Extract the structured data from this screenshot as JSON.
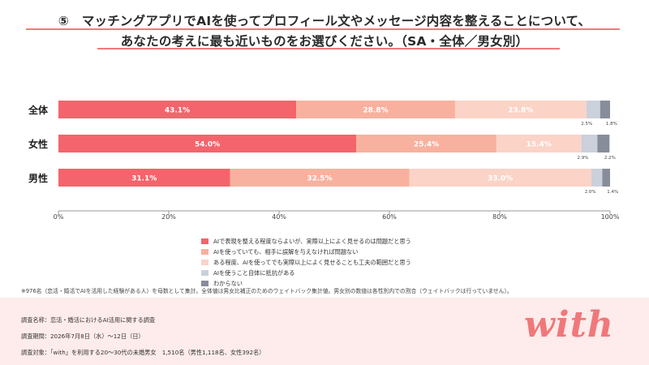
{
  "title": {
    "line1": "⑤　マッチングアプリでAIを使ってプロフィール文やメッセージ内容を整えることについて、",
    "line2": "あなたの考えに最も近いものをお選びください。（SA・全体／男女別）"
  },
  "chart_data": {
    "type": "bar",
    "orientation": "horizontal",
    "stacked": true,
    "categories": [
      "全体",
      "女性",
      "男性"
    ],
    "series": [
      {
        "name": "AIで表現を整える程度ならよいが、実際以上によく見せるのは問題だと思う",
        "color": "#f4646c",
        "values": [
          43.1,
          54.0,
          31.1
        ],
        "labels": [
          "43.1%",
          "54.0%",
          "31.1%"
        ]
      },
      {
        "name": "AIを使っていても、相手に誤解を与えなければ問題ない",
        "color": "#f8b19f",
        "values": [
          28.8,
          25.4,
          32.5
        ],
        "labels": [
          "28.8%",
          "25.4%",
          "32.5%"
        ]
      },
      {
        "name": "ある程度、AIを使ってでも実際以上によく見せることも工夫の範囲だと思う",
        "color": "#fbd3c7",
        "values": [
          23.8,
          15.4,
          33.0
        ],
        "labels": [
          "23.8%",
          "15.4%",
          "33.0%"
        ]
      },
      {
        "name": "AIを使うこと自体に抵抗がある",
        "color": "#cbd0db",
        "values": [
          2.5,
          2.9,
          2.0
        ],
        "labels": [
          "2.5%",
          "2.9%",
          "2.0%"
        ]
      },
      {
        "name": "わからない",
        "color": "#878d9b",
        "values": [
          1.8,
          2.2,
          1.4
        ],
        "labels": [
          "1.8%",
          "2.2%",
          "1.4%"
        ]
      }
    ],
    "xlim": [
      0,
      100
    ],
    "x_ticks": [
      "0%",
      "20%",
      "40%",
      "60%",
      "80%",
      "100%"
    ],
    "grid": false,
    "legend_position": "bottom"
  },
  "note": "※976名（恋活・婚活でAIを活用した経験がある人）を母数として集計。全体値は男女比補正のためのウェイトバック集計値。男女別の数値は各性別内での割合（ウェイトバックは行っていません）。",
  "footer": {
    "survey_name": "調査名称：恋活・婚活におけるAI活用に関する調査",
    "survey_period": "調査期間：2026年7月8日（水）～12日（日）",
    "survey_target": "調査対象：「with」を利用する20～30代の未婚男女　1,510名（男性1,118名、女性392名）",
    "logo_text": "with"
  }
}
